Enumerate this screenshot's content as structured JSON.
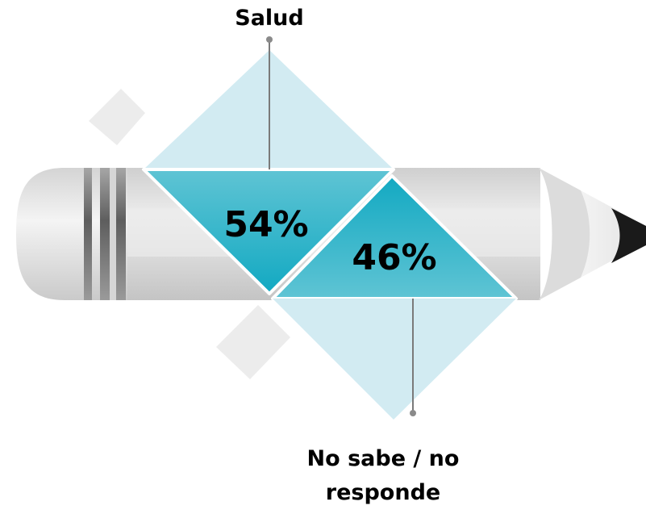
{
  "chart_data": {
    "type": "pie",
    "categories": [
      "Salud",
      "No sabe / no responde"
    ],
    "values": [
      54,
      46
    ],
    "value_labels": [
      "54%",
      "46%"
    ],
    "colors": {
      "segment_main": "#1aafc6",
      "segment_light": "#c8e8f0",
      "pencil_body": "#dadada",
      "pencil_tip": "#1a1a1a"
    }
  }
}
